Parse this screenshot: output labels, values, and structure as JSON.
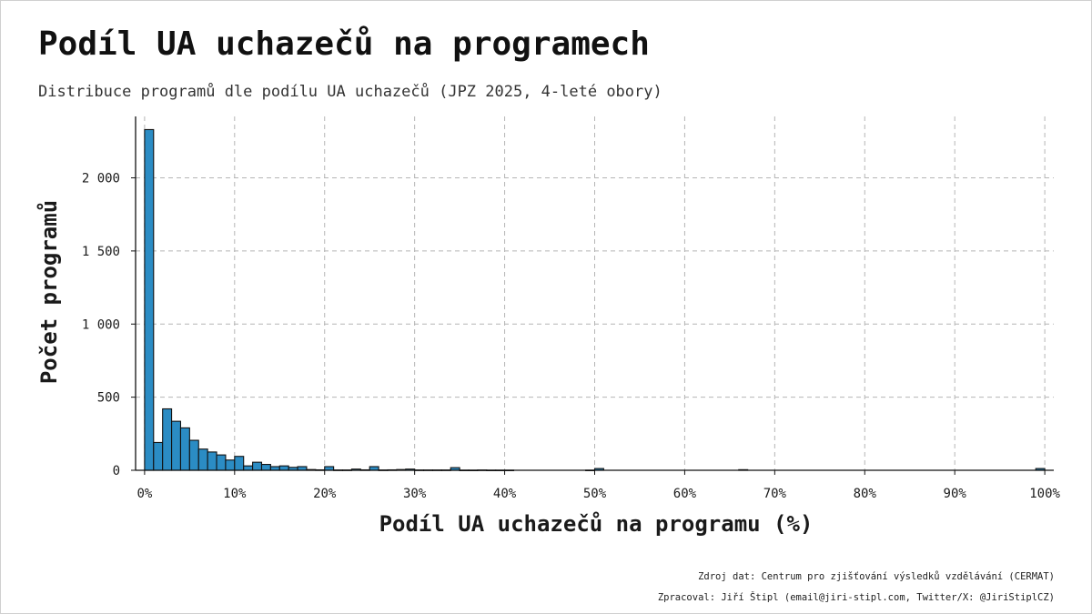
{
  "title": "Podíl UA uchazečů na programech",
  "subtitle": "Distribuce programů dle podílu UA uchazečů (JPZ 2025, 4-leté obory)",
  "footer": {
    "source": "Zdroj dat: Centrum pro zjišťování výsledků vzdělávání (CERMAT)",
    "author": "Zpracoval: Jiří Štipl (email@jiri-stipl.com, Twitter/X: @JiriStiplCZ)"
  },
  "chart_data": {
    "type": "bar",
    "subtype": "histogram",
    "xlabel": "Podíl UA uchazečů na programu (%)",
    "ylabel": "Počet programů",
    "xlim": [
      -1,
      101
    ],
    "ylim": [
      0,
      2420
    ],
    "bin_width": 1,
    "grid": true,
    "bar_color": "#2b8cc4",
    "bar_edge_color": "#111111",
    "x_ticks": [
      0,
      10,
      20,
      30,
      40,
      50,
      60,
      70,
      80,
      90,
      100
    ],
    "x_tick_labels": [
      "0%",
      "10%",
      "20%",
      "30%",
      "40%",
      "50%",
      "60%",
      "70%",
      "80%",
      "90%",
      "100%"
    ],
    "y_ticks": [
      0,
      500,
      1000,
      1500,
      2000
    ],
    "y_tick_labels": [
      "0",
      "500",
      "1 000",
      "1 500",
      "2 000"
    ],
    "bins": [
      {
        "x0": 0,
        "count": 2330
      },
      {
        "x0": 1,
        "count": 190
      },
      {
        "x0": 2,
        "count": 420
      },
      {
        "x0": 3,
        "count": 335
      },
      {
        "x0": 4,
        "count": 290
      },
      {
        "x0": 5,
        "count": 205
      },
      {
        "x0": 6,
        "count": 145
      },
      {
        "x0": 7,
        "count": 125
      },
      {
        "x0": 8,
        "count": 105
      },
      {
        "x0": 9,
        "count": 70
      },
      {
        "x0": 10,
        "count": 95
      },
      {
        "x0": 11,
        "count": 30
      },
      {
        "x0": 12,
        "count": 55
      },
      {
        "x0": 13,
        "count": 40
      },
      {
        "x0": 14,
        "count": 25
      },
      {
        "x0": 15,
        "count": 30
      },
      {
        "x0": 16,
        "count": 20
      },
      {
        "x0": 17,
        "count": 25
      },
      {
        "x0": 18,
        "count": 5
      },
      {
        "x0": 19,
        "count": 3
      },
      {
        "x0": 20,
        "count": 25
      },
      {
        "x0": 21,
        "count": 2
      },
      {
        "x0": 22,
        "count": 2
      },
      {
        "x0": 23,
        "count": 8
      },
      {
        "x0": 24,
        "count": 3
      },
      {
        "x0": 25,
        "count": 25
      },
      {
        "x0": 26,
        "count": 2
      },
      {
        "x0": 27,
        "count": 3
      },
      {
        "x0": 28,
        "count": 5
      },
      {
        "x0": 29,
        "count": 8
      },
      {
        "x0": 30,
        "count": 2
      },
      {
        "x0": 31,
        "count": 2
      },
      {
        "x0": 32,
        "count": 2
      },
      {
        "x0": 33,
        "count": 2
      },
      {
        "x0": 34,
        "count": 18
      },
      {
        "x0": 35,
        "count": 1
      },
      {
        "x0": 36,
        "count": 1
      },
      {
        "x0": 37,
        "count": 2
      },
      {
        "x0": 38,
        "count": 1
      },
      {
        "x0": 39,
        "count": 1
      },
      {
        "x0": 40,
        "count": 1
      },
      {
        "x0": 49,
        "count": 1
      },
      {
        "x0": 50,
        "count": 12
      },
      {
        "x0": 66,
        "count": 4
      },
      {
        "x0": 99,
        "count": 12
      }
    ]
  }
}
